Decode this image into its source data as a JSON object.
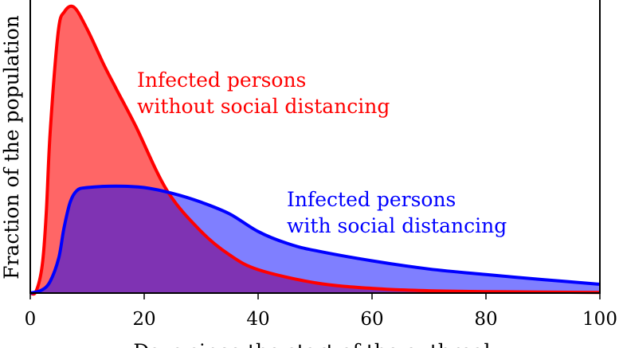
{
  "chart_data": {
    "type": "area",
    "title": "",
    "xlabel": "Days since the start of the outbreak",
    "ylabel": "Fraction of the population",
    "xlim": [
      0,
      100
    ],
    "ylim": [
      0,
      1
    ],
    "xticks": [
      "0",
      "20",
      "40",
      "60",
      "80",
      "100"
    ],
    "yticks": [],
    "grid": false,
    "series": [
      {
        "name": "Infected persons without social distancing",
        "label_lines": [
          "Infected persons",
          "without social distancing"
        ],
        "color": "#ff0000",
        "fill": "#ff6666",
        "x": [
          0,
          1,
          2.1,
          2.8,
          3.5,
          4.9,
          6,
          7.7,
          10,
          12.9,
          15,
          18.5,
          24,
          30,
          35,
          40,
          50,
          60,
          70,
          80,
          100
        ],
        "y": [
          0,
          0.005,
          0.095,
          0.27,
          0.55,
          0.89,
          0.96,
          0.975,
          0.9,
          0.78,
          0.7,
          0.57,
          0.35,
          0.21,
          0.13,
          0.08,
          0.035,
          0.016,
          0.008,
          0.005,
          0.002
        ]
      },
      {
        "name": "Infected persons with social distancing",
        "label_lines": [
          "Infected persons",
          "with social distancing"
        ],
        "color": "#0000ff",
        "fill": "#8080ff",
        "x": [
          0,
          2,
          3.5,
          5,
          5.9,
          7,
          8.2,
          10,
          15,
          20,
          25,
          30,
          35,
          40,
          45,
          50,
          60,
          70,
          80,
          90,
          100
        ],
        "y": [
          0,
          0.01,
          0.04,
          0.12,
          0.22,
          0.31,
          0.35,
          0.36,
          0.365,
          0.36,
          0.34,
          0.31,
          0.27,
          0.21,
          0.17,
          0.145,
          0.11,
          0.082,
          0.063,
          0.046,
          0.03
        ]
      }
    ]
  }
}
